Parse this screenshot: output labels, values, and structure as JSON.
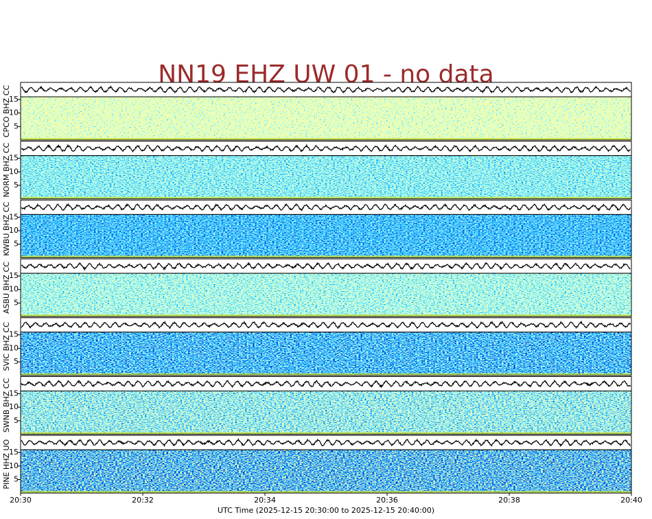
{
  "chart_data": {
    "type": "spectrogram-stack",
    "title": "NN19 EHZ UW 01 - no data",
    "xlabel": "UTC Time (2025-12-15 20:30:00 to 2025-12-15 20:40:00)",
    "xlim": [
      0,
      10
    ],
    "xticks": [
      {
        "value": 0,
        "label": "20:30"
      },
      {
        "value": 2,
        "label": "20:32"
      },
      {
        "value": 4,
        "label": "20:34"
      },
      {
        "value": 6,
        "label": "20:36"
      },
      {
        "value": 8,
        "label": "20:38"
      },
      {
        "value": 10,
        "label": "20:40"
      }
    ],
    "panels": [
      {
        "label": "CPCO BHZ CC",
        "ylim": [
          0,
          16
        ],
        "yticks": [
          5,
          10,
          15
        ]
      },
      {
        "label": "NORM BHZ CC",
        "ylim": [
          0,
          16
        ],
        "yticks": [
          5,
          10,
          15
        ]
      },
      {
        "label": "KWBU BHZ CC",
        "ylim": [
          0,
          16
        ],
        "yticks": [
          5,
          10,
          15
        ]
      },
      {
        "label": "ASBU BHZ CC",
        "ylim": [
          0,
          16
        ],
        "yticks": [
          5,
          10,
          15
        ]
      },
      {
        "label": "SVIC BHZ CC",
        "ylim": [
          0,
          16
        ],
        "yticks": [
          5,
          10,
          15
        ]
      },
      {
        "label": "SWNB BHZ CC",
        "ylim": [
          0,
          16
        ],
        "yticks": [
          5,
          10,
          15
        ]
      },
      {
        "label": "PINE HHZ UO",
        "ylim": [
          0,
          16
        ],
        "yticks": [
          5,
          10,
          15
        ]
      }
    ]
  }
}
